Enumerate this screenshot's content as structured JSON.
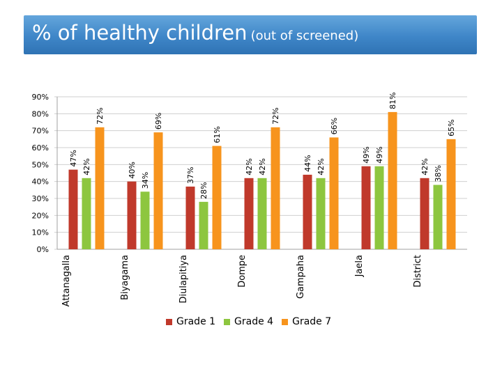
{
  "title": {
    "main": "% of healthy children",
    "sub": "(out of screened)"
  },
  "colors": {
    "grade1": "#c0392b",
    "grade4": "#8dc63f",
    "grade7": "#f7941d",
    "axis": "#a0a0a0",
    "banner": "#3f86c8"
  },
  "chart_data": {
    "type": "bar",
    "title": "% of healthy children (out of screened)",
    "categories": [
      "Attanagalla",
      "Biyagama",
      "Diulapitiya",
      "Dompe",
      "Gampaha",
      "Jaela",
      "District"
    ],
    "series": [
      {
        "name": "Grade 1",
        "values": [
          47,
          40,
          37,
          42,
          44,
          49,
          42
        ],
        "labels": [
          "47%",
          "40%",
          "37%",
          "42%",
          "44%",
          "49%",
          "42%"
        ]
      },
      {
        "name": "Grade 4",
        "values": [
          42,
          34,
          28,
          42,
          42,
          49,
          38
        ],
        "labels": [
          "42%",
          "34%",
          "28%",
          "42%",
          "42%",
          "49%",
          "38%"
        ]
      },
      {
        "name": "Grade 7",
        "values": [
          72,
          69,
          61,
          72,
          66,
          81,
          65
        ],
        "labels": [
          "72%",
          "69%",
          "61%",
          "72%",
          "66%",
          "81%",
          "65%"
        ]
      }
    ],
    "yticks": [
      "0%",
      "10%",
      "20%",
      "30%",
      "40%",
      "50%",
      "60%",
      "70%",
      "80%",
      "90%"
    ],
    "ylim": [
      0,
      90
    ],
    "xlabel": "",
    "ylabel": "",
    "legend_position": "bottom"
  }
}
